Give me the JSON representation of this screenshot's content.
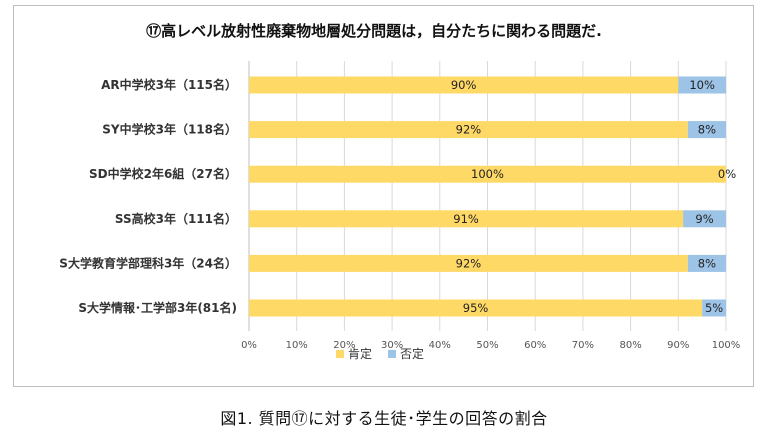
{
  "chart_data": {
    "type": "bar",
    "orientation": "horizontal",
    "stacked": true,
    "title": "⑰高レベル放射性廃棄物地層処分問題は，自分たちに関わる問題だ.",
    "categories": [
      "AR中学校3年（115名）",
      "SY中学校3年（118名）",
      "SD中学校2年6組（27名）",
      "SS高校3年（111名）",
      "S大学教育学部理科3年（24名）",
      "S大学情報･工学部3年(81名)"
    ],
    "series": [
      {
        "name": "肯定",
        "color": "#ffd966",
        "values": [
          90,
          92,
          100,
          91,
          92,
          95
        ]
      },
      {
        "name": "否定",
        "color": "#9dc3e6",
        "values": [
          10,
          8,
          0,
          9,
          8,
          5
        ]
      }
    ],
    "data_labels": [
      [
        "90%",
        "92%",
        "100%",
        "91%",
        "92%",
        "95%"
      ],
      [
        "10%",
        "8%",
        "0%",
        "9%",
        "8%",
        "5%"
      ]
    ],
    "xlim": [
      0,
      100
    ],
    "x_ticks": [
      "0%",
      "10%",
      "20%",
      "30%",
      "40%",
      "50%",
      "60%",
      "70%",
      "80%",
      "90%",
      "100%"
    ],
    "grid": true,
    "legend_position": "bottom"
  },
  "caption": "図1.   質問⑰に対する生徒･学生の回答の割合"
}
